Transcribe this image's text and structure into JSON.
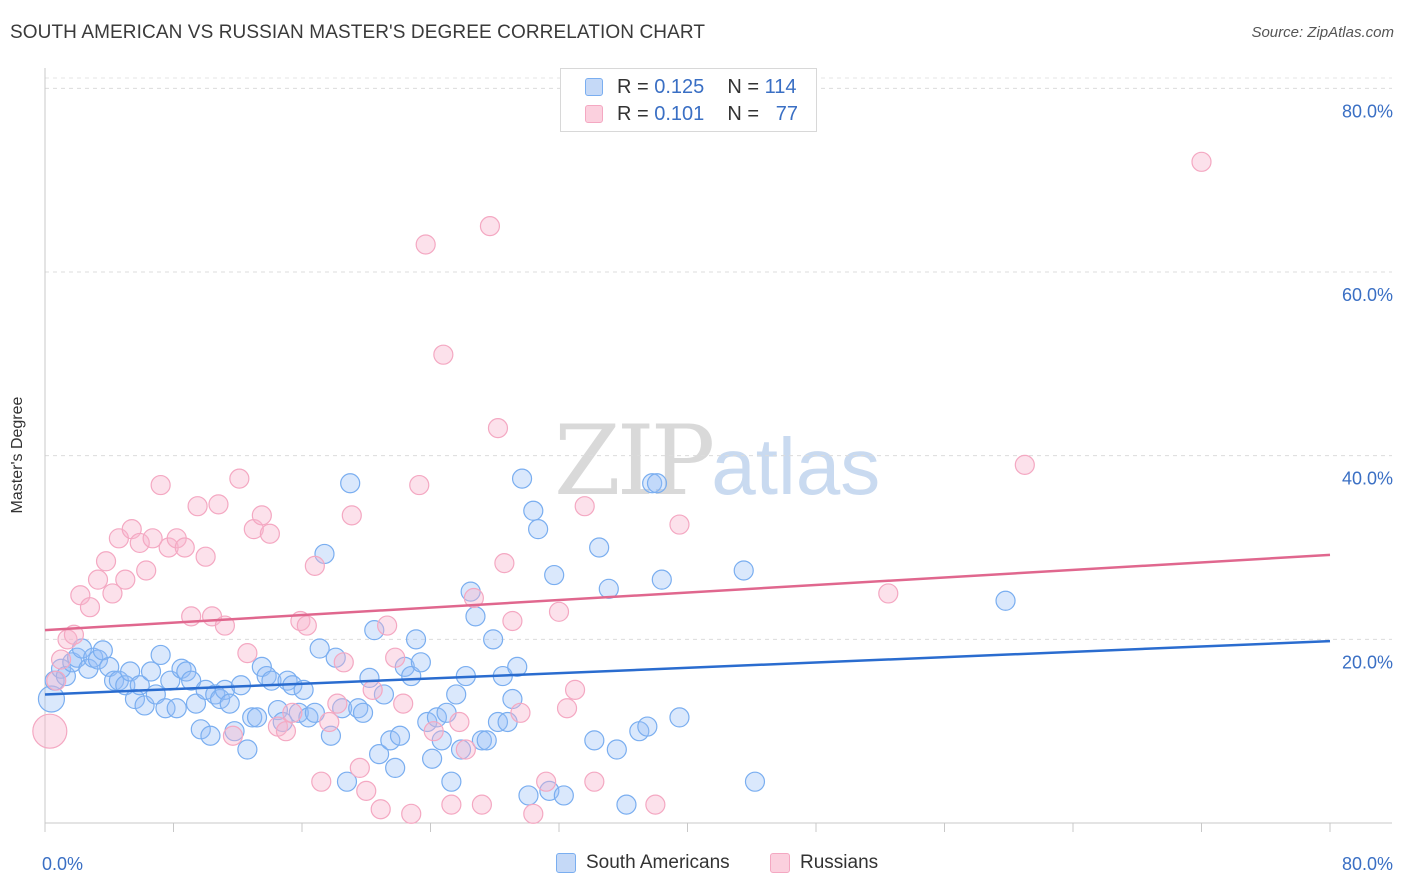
{
  "title": "SOUTH AMERICAN VS RUSSIAN MASTER'S DEGREE CORRELATION CHART",
  "source": "Source: ZipAtlas.com",
  "watermark": {
    "zip": "ZIP",
    "atlas": "atlas"
  },
  "legend": {
    "r_label": "R =",
    "n_label": "N =",
    "south": {
      "r": "0.125",
      "n": "114"
    },
    "russian": {
      "r": "0.101",
      "n": "77"
    }
  },
  "chart_data": {
    "type": "scatter",
    "title": "SOUTH AMERICAN VS RUSSIAN MASTER'S DEGREE CORRELATION CHART",
    "xlabel": "",
    "ylabel": "Master's Degree",
    "xlim": [
      0,
      80
    ],
    "ylim": [
      0,
      82
    ],
    "x_tick_labels": [
      "0.0%",
      "80.0%"
    ],
    "y_tick_values": [
      20,
      40,
      60,
      80
    ],
    "y_tick_labels": [
      "20.0%",
      "40.0%",
      "60.0%",
      "80.0%"
    ],
    "grid": true,
    "legend_position": "top-center",
    "series": [
      {
        "name": "South Americans",
        "color": "#7aaef0",
        "line_color": "#2a6ccf",
        "trend": [
          [
            0,
            14.0
          ],
          [
            80,
            19.8
          ]
        ],
        "points": [
          [
            0.4,
            13.5
          ],
          [
            0.6,
            15.5
          ],
          [
            1.0,
            16.8
          ],
          [
            1.3,
            16.0
          ],
          [
            1.7,
            17.5
          ],
          [
            2.0,
            18.0
          ],
          [
            2.3,
            19.0
          ],
          [
            2.7,
            16.8
          ],
          [
            3.0,
            18.0
          ],
          [
            3.3,
            17.8
          ],
          [
            3.6,
            18.8
          ],
          [
            4.0,
            17.0
          ],
          [
            4.3,
            15.5
          ],
          [
            4.6,
            15.5
          ],
          [
            5.0,
            15.0
          ],
          [
            5.3,
            16.5
          ],
          [
            5.6,
            13.5
          ],
          [
            5.9,
            15.0
          ],
          [
            6.2,
            12.8
          ],
          [
            6.6,
            16.5
          ],
          [
            6.9,
            14.0
          ],
          [
            7.2,
            18.3
          ],
          [
            7.5,
            12.5
          ],
          [
            7.8,
            15.5
          ],
          [
            8.2,
            12.5
          ],
          [
            8.5,
            16.8
          ],
          [
            8.8,
            16.5
          ],
          [
            9.1,
            15.5
          ],
          [
            9.4,
            13.0
          ],
          [
            9.7,
            10.2
          ],
          [
            10.0,
            14.5
          ],
          [
            10.3,
            9.5
          ],
          [
            10.6,
            14.0
          ],
          [
            10.9,
            13.5
          ],
          [
            11.2,
            14.5
          ],
          [
            11.5,
            13.0
          ],
          [
            11.8,
            10.0
          ],
          [
            12.2,
            15.0
          ],
          [
            12.6,
            8.0
          ],
          [
            12.9,
            11.5
          ],
          [
            13.2,
            11.5
          ],
          [
            13.5,
            17.0
          ],
          [
            13.8,
            16.0
          ],
          [
            14.1,
            15.5
          ],
          [
            14.5,
            12.3
          ],
          [
            14.8,
            11.0
          ],
          [
            15.1,
            15.5
          ],
          [
            15.4,
            15.0
          ],
          [
            15.8,
            12.0
          ],
          [
            16.1,
            14.5
          ],
          [
            16.4,
            11.5
          ],
          [
            16.8,
            12.0
          ],
          [
            17.1,
            19.0
          ],
          [
            17.4,
            29.3
          ],
          [
            17.8,
            9.5
          ],
          [
            18.1,
            18.0
          ],
          [
            18.5,
            12.5
          ],
          [
            18.8,
            4.5
          ],
          [
            19.0,
            37.0
          ],
          [
            19.5,
            12.5
          ],
          [
            19.8,
            12.0
          ],
          [
            20.2,
            15.8
          ],
          [
            20.5,
            21.0
          ],
          [
            20.8,
            7.5
          ],
          [
            21.1,
            14.0
          ],
          [
            21.5,
            9.0
          ],
          [
            21.8,
            6.0
          ],
          [
            22.1,
            9.5
          ],
          [
            22.4,
            17.0
          ],
          [
            22.8,
            16.0
          ],
          [
            23.1,
            20.0
          ],
          [
            23.4,
            17.5
          ],
          [
            23.8,
            11.0
          ],
          [
            24.1,
            7.0
          ],
          [
            24.4,
            11.5
          ],
          [
            24.7,
            9.0
          ],
          [
            25.0,
            12.0
          ],
          [
            25.3,
            4.5
          ],
          [
            25.6,
            14.0
          ],
          [
            25.9,
            8.0
          ],
          [
            26.2,
            16.0
          ],
          [
            26.5,
            25.2
          ],
          [
            26.8,
            22.5
          ],
          [
            27.2,
            9.0
          ],
          [
            27.5,
            9.0
          ],
          [
            27.9,
            20.0
          ],
          [
            28.2,
            11.0
          ],
          [
            28.5,
            16.0
          ],
          [
            28.8,
            11.0
          ],
          [
            29.1,
            13.5
          ],
          [
            29.4,
            17.0
          ],
          [
            29.7,
            37.5
          ],
          [
            30.1,
            3.0
          ],
          [
            30.4,
            34.0
          ],
          [
            30.7,
            32.0
          ],
          [
            31.4,
            3.5
          ],
          [
            31.7,
            27.0
          ],
          [
            32.3,
            3.0
          ],
          [
            34.2,
            9.0
          ],
          [
            34.5,
            30.0
          ],
          [
            35.1,
            25.5
          ],
          [
            35.6,
            8.0
          ],
          [
            36.2,
            2.0
          ],
          [
            37.0,
            10.0
          ],
          [
            37.5,
            10.5
          ],
          [
            37.8,
            37.0
          ],
          [
            38.1,
            37.0
          ],
          [
            38.4,
            26.5
          ],
          [
            39.5,
            11.5
          ],
          [
            43.5,
            27.5
          ],
          [
            44.2,
            4.5
          ],
          [
            59.8,
            24.2
          ]
        ]
      },
      {
        "name": "Russians",
        "color": "#f4a8c2",
        "line_color": "#e0678e",
        "trend": [
          [
            0,
            21.0
          ],
          [
            80,
            29.2
          ]
        ],
        "points": [
          [
            0.3,
            10.0
          ],
          [
            0.7,
            15.5
          ],
          [
            1.0,
            17.8
          ],
          [
            1.4,
            20.0
          ],
          [
            1.8,
            20.5
          ],
          [
            2.2,
            24.8
          ],
          [
            2.8,
            23.5
          ],
          [
            3.3,
            26.5
          ],
          [
            3.8,
            28.5
          ],
          [
            4.2,
            25.0
          ],
          [
            4.6,
            31.0
          ],
          [
            5.0,
            26.5
          ],
          [
            5.4,
            32.0
          ],
          [
            5.9,
            30.5
          ],
          [
            6.3,
            27.5
          ],
          [
            6.7,
            31.0
          ],
          [
            7.2,
            36.8
          ],
          [
            7.7,
            30.0
          ],
          [
            8.2,
            31.0
          ],
          [
            8.7,
            30.0
          ],
          [
            9.1,
            22.5
          ],
          [
            9.5,
            34.5
          ],
          [
            10.0,
            29.0
          ],
          [
            10.4,
            22.5
          ],
          [
            10.8,
            34.7
          ],
          [
            11.2,
            21.5
          ],
          [
            11.7,
            9.5
          ],
          [
            12.1,
            37.5
          ],
          [
            12.6,
            18.5
          ],
          [
            13.0,
            32.0
          ],
          [
            13.5,
            33.5
          ],
          [
            14.0,
            31.5
          ],
          [
            14.5,
            10.5
          ],
          [
            15.0,
            10.0
          ],
          [
            15.4,
            12.0
          ],
          [
            15.9,
            22.0
          ],
          [
            16.3,
            21.5
          ],
          [
            16.8,
            28.0
          ],
          [
            17.2,
            4.5
          ],
          [
            17.7,
            11.0
          ],
          [
            18.2,
            13.0
          ],
          [
            18.6,
            17.5
          ],
          [
            19.1,
            33.5
          ],
          [
            19.6,
            6.0
          ],
          [
            20.0,
            3.5
          ],
          [
            20.4,
            14.5
          ],
          [
            20.9,
            1.5
          ],
          [
            21.3,
            21.5
          ],
          [
            21.8,
            18.0
          ],
          [
            22.3,
            13.0
          ],
          [
            22.8,
            1.0
          ],
          [
            23.3,
            36.8
          ],
          [
            23.7,
            63.0
          ],
          [
            24.2,
            10.0
          ],
          [
            24.8,
            51.0
          ],
          [
            25.3,
            2.0
          ],
          [
            25.8,
            11.0
          ],
          [
            26.2,
            8.0
          ],
          [
            26.7,
            24.5
          ],
          [
            27.2,
            2.0
          ],
          [
            27.7,
            65.0
          ],
          [
            28.2,
            43.0
          ],
          [
            28.6,
            28.3
          ],
          [
            29.1,
            22.0
          ],
          [
            29.6,
            12.0
          ],
          [
            30.4,
            1.0
          ],
          [
            31.2,
            4.5
          ],
          [
            32.0,
            23.0
          ],
          [
            32.5,
            12.5
          ],
          [
            33.0,
            14.5
          ],
          [
            33.6,
            34.5
          ],
          [
            34.2,
            4.5
          ],
          [
            38.0,
            2.0
          ],
          [
            39.5,
            32.5
          ],
          [
            52.5,
            25.0
          ],
          [
            61.0,
            39.0
          ],
          [
            72.0,
            72.0
          ]
        ]
      }
    ]
  }
}
